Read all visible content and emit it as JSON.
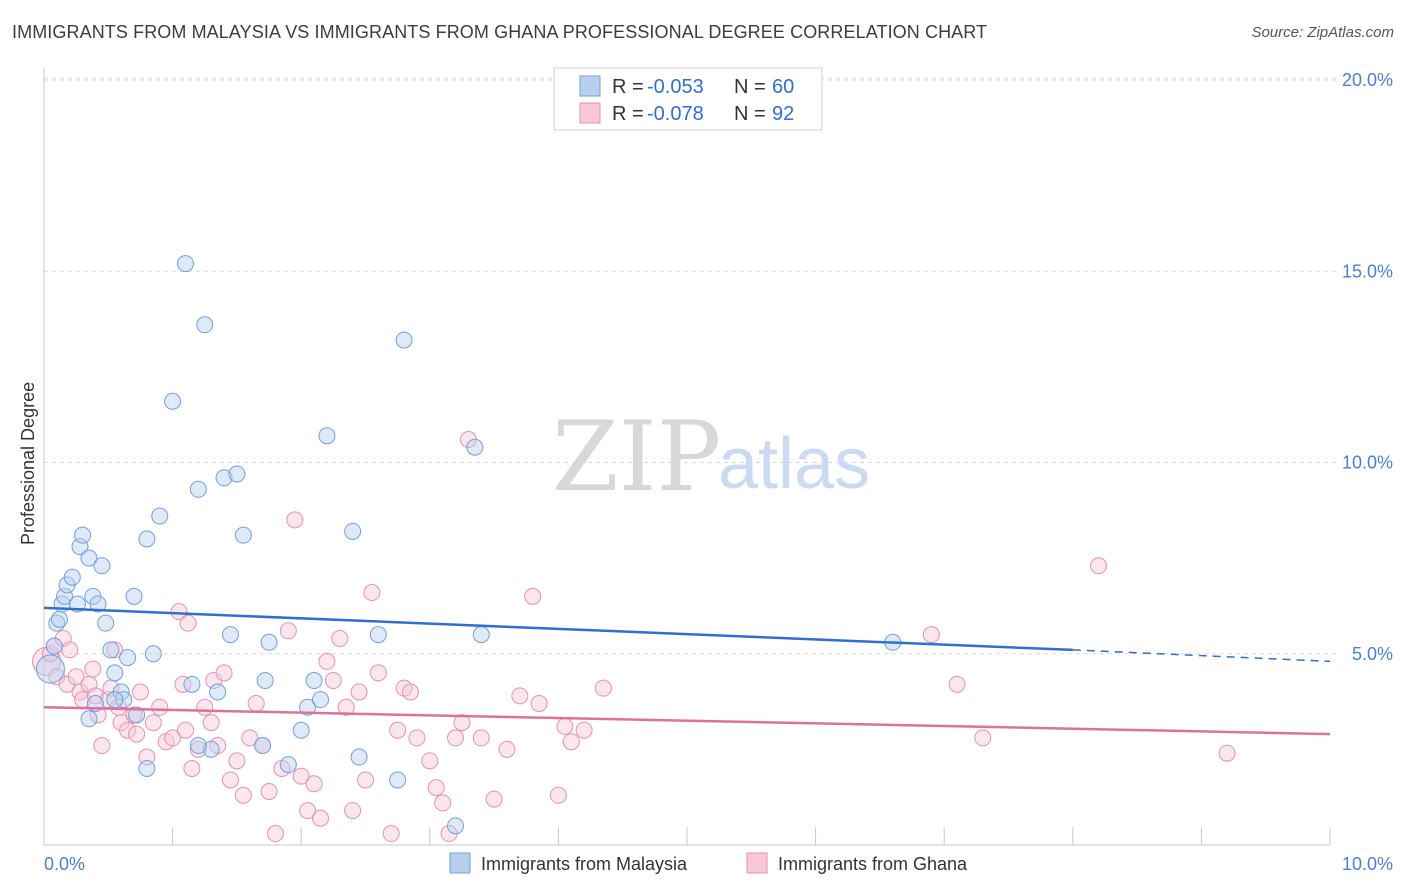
{
  "title": "IMMIGRANTS FROM MALAYSIA VS IMMIGRANTS FROM GHANA PROFESSIONAL DEGREE CORRELATION CHART",
  "source": "Source: ZipAtlas.com",
  "watermark": {
    "zip": "ZIP",
    "atlas": "atlas"
  },
  "legend": {
    "rows": [
      {
        "r_label": "R =",
        "r_value": "-0.053",
        "n_label": "N =",
        "n_value": "60"
      },
      {
        "r_label": "R =",
        "r_value": "-0.078",
        "n_label": "N =",
        "n_value": "92"
      }
    ]
  },
  "chart_data": {
    "type": "scatter",
    "title": "IMMIGRANTS FROM MALAYSIA VS IMMIGRANTS FROM GHANA PROFESSIONAL DEGREE CORRELATION CHART",
    "xlabel": "",
    "ylabel": "Professional Degree",
    "xlim": [
      0,
      10
    ],
    "ylim": [
      0,
      20
    ],
    "x_tick_labels": [
      "0.0%",
      "10.0%"
    ],
    "y_ticks": [
      5,
      10,
      15,
      20
    ],
    "y_tick_labels": [
      "5.0%",
      "10.0%",
      "15.0%",
      "20.0%"
    ],
    "grid": true,
    "series": [
      {
        "name": "Immigrants from Malaysia",
        "color": "#6fa0e0",
        "fill": "#b8d0f0",
        "r": -0.053,
        "n": 60,
        "trend": {
          "x0": 0.0,
          "y0": 6.2,
          "x1": 8.0,
          "y1": 5.1,
          "dash_to_x": 10.0,
          "dash_to_y": 4.8
        },
        "points": [
          [
            0.05,
            4.6
          ],
          [
            0.08,
            5.2
          ],
          [
            0.1,
            5.8
          ],
          [
            0.12,
            5.9
          ],
          [
            0.14,
            6.3
          ],
          [
            0.16,
            6.5
          ],
          [
            0.18,
            6.8
          ],
          [
            0.22,
            7.0
          ],
          [
            0.26,
            6.3
          ],
          [
            0.28,
            7.8
          ],
          [
            0.3,
            8.1
          ],
          [
            0.35,
            7.5
          ],
          [
            0.38,
            6.5
          ],
          [
            0.4,
            3.7
          ],
          [
            0.42,
            6.3
          ],
          [
            0.45,
            7.3
          ],
          [
            0.48,
            5.8
          ],
          [
            0.52,
            5.1
          ],
          [
            0.55,
            4.5
          ],
          [
            0.6,
            4.0
          ],
          [
            0.62,
            3.8
          ],
          [
            0.65,
            4.9
          ],
          [
            0.7,
            6.5
          ],
          [
            0.72,
            3.4
          ],
          [
            0.8,
            8.0
          ],
          [
            0.85,
            5.0
          ],
          [
            0.9,
            8.6
          ],
          [
            1.0,
            11.6
          ],
          [
            1.1,
            15.2
          ],
          [
            1.15,
            4.2
          ],
          [
            1.2,
            9.3
          ],
          [
            1.25,
            13.6
          ],
          [
            1.3,
            2.5
          ],
          [
            1.35,
            4.0
          ],
          [
            1.4,
            9.6
          ],
          [
            1.45,
            5.5
          ],
          [
            1.5,
            9.7
          ],
          [
            1.55,
            8.1
          ],
          [
            1.7,
            2.6
          ],
          [
            1.72,
            4.3
          ],
          [
            1.75,
            5.3
          ],
          [
            1.9,
            2.1
          ],
          [
            2.0,
            3.0
          ],
          [
            2.05,
            3.6
          ],
          [
            2.1,
            4.3
          ],
          [
            2.15,
            3.8
          ],
          [
            2.2,
            10.7
          ],
          [
            2.4,
            8.2
          ],
          [
            2.45,
            2.3
          ],
          [
            2.6,
            5.5
          ],
          [
            2.75,
            1.7
          ],
          [
            2.8,
            13.2
          ],
          [
            3.2,
            0.5
          ],
          [
            3.35,
            10.4
          ],
          [
            3.4,
            5.5
          ],
          [
            0.55,
            3.8
          ],
          [
            0.8,
            2.0
          ],
          [
            6.6,
            5.3
          ],
          [
            1.2,
            2.6
          ],
          [
            0.35,
            3.3
          ]
        ]
      },
      {
        "name": "Immigrants from Ghana",
        "color": "#e890b0",
        "fill": "#f8c8d8",
        "r": -0.078,
        "n": 92,
        "trend": {
          "x0": 0.0,
          "y0": 3.6,
          "x1": 10.0,
          "y1": 2.9
        },
        "points": [
          [
            0.02,
            4.8
          ],
          [
            0.05,
            5.0
          ],
          [
            0.08,
            5.2
          ],
          [
            0.1,
            4.4
          ],
          [
            0.15,
            5.4
          ],
          [
            0.18,
            4.2
          ],
          [
            0.2,
            5.1
          ],
          [
            0.25,
            4.4
          ],
          [
            0.28,
            4.0
          ],
          [
            0.3,
            3.8
          ],
          [
            0.35,
            4.2
          ],
          [
            0.38,
            4.6
          ],
          [
            0.4,
            3.9
          ],
          [
            0.42,
            3.4
          ],
          [
            0.45,
            2.6
          ],
          [
            0.5,
            3.8
          ],
          [
            0.52,
            4.1
          ],
          [
            0.55,
            5.1
          ],
          [
            0.58,
            3.6
          ],
          [
            0.6,
            3.2
          ],
          [
            0.65,
            3.0
          ],
          [
            0.7,
            3.4
          ],
          [
            0.72,
            2.9
          ],
          [
            0.75,
            4.0
          ],
          [
            0.8,
            2.3
          ],
          [
            0.85,
            3.2
          ],
          [
            0.9,
            3.6
          ],
          [
            0.95,
            2.7
          ],
          [
            1.0,
            2.8
          ],
          [
            1.05,
            6.1
          ],
          [
            1.08,
            4.2
          ],
          [
            1.1,
            3.0
          ],
          [
            1.12,
            5.8
          ],
          [
            1.15,
            2.0
          ],
          [
            1.2,
            2.5
          ],
          [
            1.25,
            3.6
          ],
          [
            1.3,
            3.2
          ],
          [
            1.32,
            4.3
          ],
          [
            1.35,
            2.6
          ],
          [
            1.4,
            4.5
          ],
          [
            1.45,
            1.7
          ],
          [
            1.5,
            2.2
          ],
          [
            1.55,
            1.3
          ],
          [
            1.6,
            2.8
          ],
          [
            1.65,
            3.7
          ],
          [
            1.7,
            2.6
          ],
          [
            1.75,
            1.4
          ],
          [
            1.8,
            0.3
          ],
          [
            1.85,
            2.0
          ],
          [
            1.9,
            5.6
          ],
          [
            1.95,
            8.5
          ],
          [
            2.0,
            1.8
          ],
          [
            2.05,
            0.9
          ],
          [
            2.1,
            1.6
          ],
          [
            2.15,
            0.7
          ],
          [
            2.2,
            4.8
          ],
          [
            2.25,
            4.3
          ],
          [
            2.3,
            5.4
          ],
          [
            2.35,
            3.6
          ],
          [
            2.4,
            0.9
          ],
          [
            2.45,
            4.0
          ],
          [
            2.5,
            1.7
          ],
          [
            2.55,
            6.6
          ],
          [
            2.6,
            4.5
          ],
          [
            2.7,
            0.3
          ],
          [
            2.75,
            3.0
          ],
          [
            2.8,
            4.1
          ],
          [
            2.85,
            4.0
          ],
          [
            2.9,
            2.8
          ],
          [
            3.0,
            2.2
          ],
          [
            3.05,
            1.5
          ],
          [
            3.1,
            1.1
          ],
          [
            3.15,
            0.3
          ],
          [
            3.2,
            2.8
          ],
          [
            3.25,
            3.2
          ],
          [
            3.3,
            10.6
          ],
          [
            3.4,
            2.8
          ],
          [
            3.5,
            1.2
          ],
          [
            3.6,
            2.5
          ],
          [
            3.7,
            3.9
          ],
          [
            3.8,
            6.5
          ],
          [
            3.85,
            3.7
          ],
          [
            4.0,
            1.3
          ],
          [
            4.05,
            3.1
          ],
          [
            4.1,
            2.7
          ],
          [
            4.2,
            3.0
          ],
          [
            4.35,
            4.1
          ],
          [
            6.9,
            5.5
          ],
          [
            7.1,
            4.2
          ],
          [
            7.3,
            2.8
          ],
          [
            8.2,
            7.3
          ],
          [
            9.2,
            2.4
          ]
        ]
      }
    ]
  },
  "bottom_legend": [
    {
      "label": "Immigrants from Malaysia"
    },
    {
      "label": "Immigrants from Ghana"
    }
  ]
}
